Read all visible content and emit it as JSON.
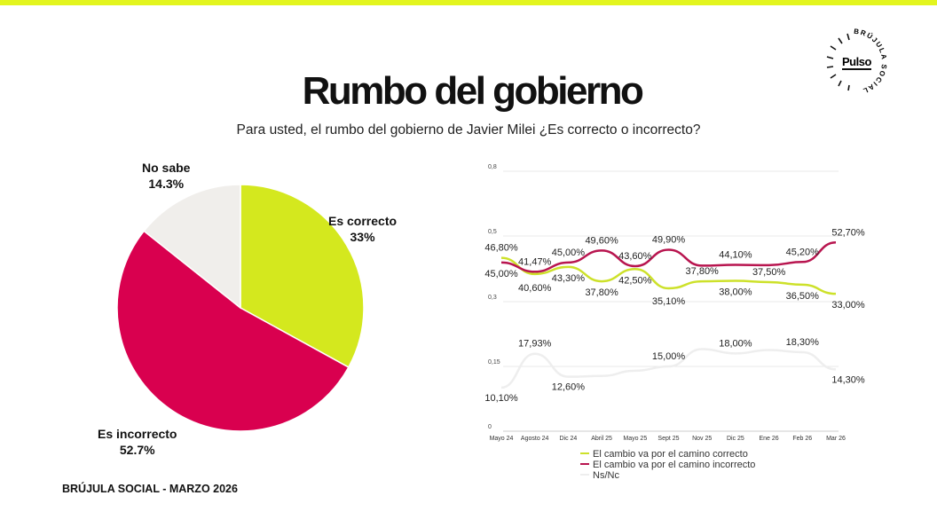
{
  "header": {
    "title": "Rumbo del gobierno",
    "subtitle": "Para usted, el rumbo del gobierno de Javier Milei ¿Es correcto o incorrecto?"
  },
  "logo": {
    "text": "Pulso",
    "ring_text": "BRÚJULA SOCIAL"
  },
  "footer": "BRÚJULA SOCIAL - MARZO 2026",
  "colors": {
    "correcto": "#d4e81e",
    "incorrecto": "#d9004f",
    "nosabe": "#f0eeeb",
    "line_correcto": "#cde12a",
    "line_incorrecto": "#b8154f",
    "line_nsnc": "#eeeeee"
  },
  "chart_data": [
    {
      "type": "pie",
      "slices": [
        {
          "label": "Es correcto",
          "value": 33,
          "value_label": "33%"
        },
        {
          "label": "Es incorrecto",
          "value": 52.7,
          "value_label": "52.7%"
        },
        {
          "label": "No sabe",
          "value": 14.3,
          "value_label": "14.3%"
        }
      ]
    },
    {
      "type": "line",
      "categories": [
        "Mayo 24",
        "Agosto 24",
        "Dic 24",
        "Abril 25",
        "Mayo 25",
        "Sept 25",
        "Nov 25",
        "Dic 25",
        "Ene 26",
        "Feb 26",
        "Mar 26"
      ],
      "y_ticks_upper": [
        "0,8",
        "0,5",
        "0,3"
      ],
      "y_ticks_lower": [
        "0,15",
        "0"
      ],
      "ylim_upper": [
        0.3,
        0.8
      ],
      "ylim_lower": [
        0,
        0.2
      ],
      "series": [
        {
          "name": "El cambio va por el camino correcto",
          "values": [
            0.468,
            0.406,
            0.433,
            0.378,
            0.425,
            0.351,
            0.378,
            0.38,
            0.375,
            0.365,
            0.33
          ],
          "labels": [
            "46,80%",
            "40,60%",
            "43,30%",
            "37,80%",
            "42,50%",
            "35,10%",
            "37,80%",
            "38,00%",
            "37,50%",
            "36,50%",
            "33,00%"
          ]
        },
        {
          "name": "El cambio va por el camino incorrecto",
          "values": [
            0.45,
            0.4147,
            0.45,
            0.496,
            0.436,
            0.499,
            0.438,
            0.441,
            0.44,
            0.452,
            0.527
          ],
          "labels": [
            "45,00%",
            "41,47%",
            "45,00%",
            "49,60%",
            "43,60%",
            "49,90%",
            null,
            "44,10%",
            null,
            "45,20%",
            "52,70%"
          ]
        },
        {
          "name": "Ns/Nc",
          "values": [
            0.101,
            0.1793,
            0.126,
            0.128,
            0.14,
            0.15,
            0.19,
            0.18,
            0.188,
            0.183,
            0.143
          ],
          "labels": [
            "10,10%",
            "17,93%",
            "12,60%",
            null,
            null,
            "15,00%",
            null,
            "18,00%",
            null,
            "18,30%",
            "14,30%"
          ]
        }
      ]
    }
  ]
}
